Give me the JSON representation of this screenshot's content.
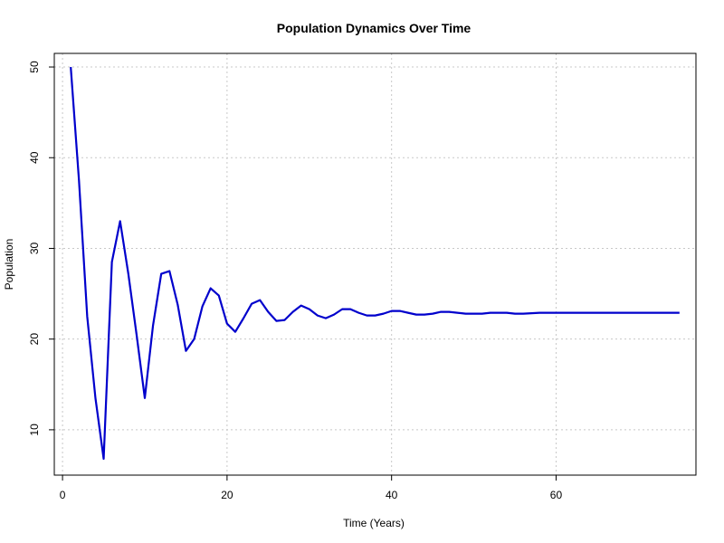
{
  "colors": {
    "series": "#0000cc"
  },
  "chart_data": {
    "type": "line",
    "title": "Population Dynamics Over Time",
    "xlabel": "Time (Years)",
    "ylabel": "Population",
    "xlim": [
      -1,
      77
    ],
    "ylim": [
      5,
      51.5
    ],
    "xticks": [
      "0",
      "20",
      "40",
      "60"
    ],
    "yticks": [
      "10",
      "20",
      "30",
      "40",
      "50"
    ],
    "grid": true,
    "series": [
      {
        "x": [
          1,
          2,
          3,
          4,
          5,
          6,
          7,
          8,
          9,
          10,
          11,
          12,
          13,
          14,
          15,
          16,
          17,
          18,
          19,
          20,
          21,
          22,
          23,
          24,
          25,
          26,
          27,
          28,
          29,
          30,
          31,
          32,
          33,
          34,
          35,
          36,
          37,
          38,
          39,
          40,
          41,
          42,
          43,
          44,
          45,
          46,
          47,
          48,
          49,
          50,
          51,
          52,
          53,
          54,
          55,
          56,
          57,
          58,
          59,
          60,
          61,
          62,
          63,
          64,
          65,
          66,
          67,
          68,
          69,
          70,
          71,
          72,
          73,
          74,
          75
        ],
        "y": [
          50,
          37.5,
          22.5,
          13.5,
          6.8,
          28.5,
          33,
          27.2,
          20.5,
          13.5,
          21.5,
          27.2,
          27.5,
          23.8,
          18.7,
          20,
          23.6,
          25.6,
          24.8,
          21.7,
          20.8,
          22.3,
          23.9,
          24.3,
          23,
          22,
          22.1,
          23,
          23.7,
          23.3,
          22.6,
          22.3,
          22.7,
          23.3,
          23.3,
          22.9,
          22.6,
          22.6,
          22.8,
          23.1,
          23.1,
          22.9,
          22.7,
          22.7,
          22.8,
          23,
          23,
          22.9,
          22.8,
          22.8,
          22.8,
          22.9,
          22.9,
          22.9,
          22.8,
          22.8,
          22.85,
          22.9,
          22.9,
          22.9,
          22.9,
          22.9,
          22.9,
          22.9,
          22.9,
          22.9,
          22.9,
          22.9,
          22.9,
          22.9,
          22.9,
          22.9,
          22.9,
          22.9,
          22.9
        ]
      }
    ]
  }
}
